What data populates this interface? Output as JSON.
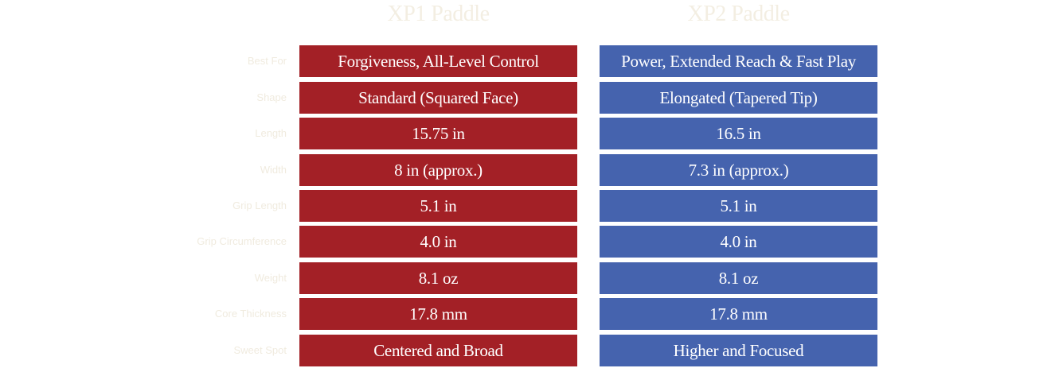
{
  "columns": {
    "xp1": "XP1 Paddle",
    "xp2": "XP2 Paddle"
  },
  "colors": {
    "xp1_bg": "#a32026",
    "xp2_bg": "#4563ae",
    "header_text": "#f3eee2",
    "label_text": "#f0ebdf"
  },
  "rows": [
    {
      "label": "Best For",
      "xp1": "Forgiveness, All-Level Control",
      "xp2": "Power, Extended Reach & Fast Play"
    },
    {
      "label": "Shape",
      "xp1": "Standard (Squared Face)",
      "xp2": "Elongated (Tapered Tip)"
    },
    {
      "label": "Length",
      "xp1": "15.75 in",
      "xp2": "16.5 in"
    },
    {
      "label": "Width",
      "xp1": "8 in (approx.)",
      "xp2": "7.3 in (approx.)"
    },
    {
      "label": "Grip Length",
      "xp1": "5.1 in",
      "xp2": "5.1 in"
    },
    {
      "label": "Grip Circumference",
      "xp1": "4.0 in",
      "xp2": "4.0 in"
    },
    {
      "label": "Weight",
      "xp1": "8.1 oz",
      "xp2": "8.1 oz"
    },
    {
      "label": "Core Thickness",
      "xp1": "17.8 mm",
      "xp2": "17.8 mm"
    },
    {
      "label": "Sweet Spot",
      "xp1": "Centered and Broad",
      "xp2": "Higher and Focused"
    }
  ]
}
